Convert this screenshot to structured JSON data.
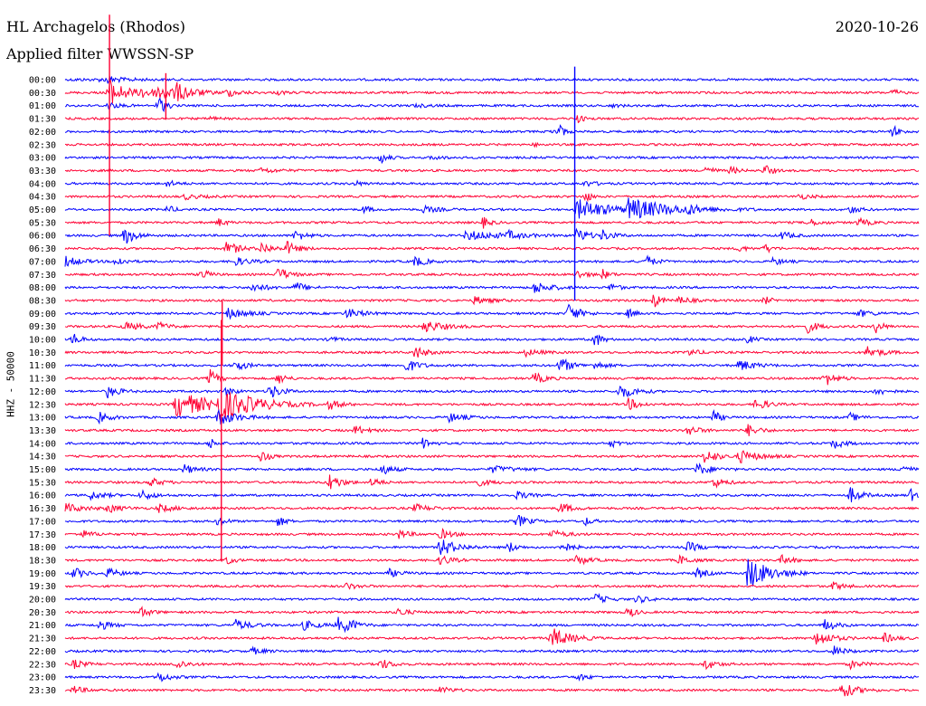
{
  "header": {
    "station": "HL Archagelos (Rhodos)",
    "date": "2020-10-26",
    "filter": "Applied filter  WWSSN-SP"
  },
  "channel_label": "HHZ - 50000",
  "chart_data": {
    "type": "line",
    "title": "HL Archagelos (Rhodos)",
    "subtitle": "Applied filter  WWSSN-SP",
    "date": "2020-10-26",
    "ylabel": "HHZ - 50000",
    "xlabel": "",
    "grid": false,
    "series_colors": [
      "#0000ff",
      "#ff0033"
    ],
    "rows": [
      {
        "label": "00:00",
        "events": [
          [
            0.01,
            0.5,
            0.1
          ],
          [
            0.04,
            0.3,
            0.15
          ],
          [
            0.05,
            0.3,
            0.5
          ],
          [
            0.08,
            0.9,
            0.05
          ]
        ]
      },
      {
        "label": "00:30",
        "events": [
          [
            0.05,
            0.4,
            2.2
          ],
          [
            0.09,
            0.35,
            0.7
          ],
          [
            0.11,
            0.35,
            1.2
          ],
          [
            0.13,
            0.45,
            1.1
          ],
          [
            0.19,
            0.25,
            0.6
          ],
          [
            0.25,
            0.1,
            0.3
          ],
          [
            0.97,
            0.08,
            0.5
          ]
        ]
      },
      {
        "label": "01:00",
        "events": [
          [
            0.05,
            0.2,
            0.5
          ],
          [
            0.11,
            0.1,
            1.5
          ],
          [
            0.41,
            0.4,
            0.2
          ],
          [
            0.64,
            0.2,
            0.2
          ]
        ]
      },
      {
        "label": "01:30",
        "events": [
          [
            0.17,
            0.1,
            0.3
          ],
          [
            0.6,
            0.1,
            0.6
          ]
        ]
      },
      {
        "label": "02:00",
        "events": [
          [
            0.57,
            0.1,
            0.4
          ],
          [
            0.58,
            0.05,
            0.9
          ],
          [
            0.97,
            0.1,
            0.9
          ]
        ]
      },
      {
        "label": "02:30",
        "events": [
          [
            0.55,
            0.1,
            0.2
          ]
        ]
      },
      {
        "label": "03:00",
        "events": [
          [
            0.37,
            0.1,
            0.9
          ],
          [
            0.43,
            0.2,
            0.3
          ]
        ]
      },
      {
        "label": "03:30",
        "events": [
          [
            0.23,
            0.3,
            0.4
          ],
          [
            0.75,
            0.1,
            0.8
          ],
          [
            0.78,
            0.1,
            0.6
          ],
          [
            0.82,
            0.1,
            0.9
          ]
        ]
      },
      {
        "label": "04:00",
        "events": [
          [
            0.12,
            0.15,
            0.5
          ],
          [
            0.34,
            0.1,
            0.4
          ],
          [
            0.61,
            0.2,
            0.4
          ]
        ]
      },
      {
        "label": "04:30",
        "events": [
          [
            0.14,
            0.3,
            0.4
          ],
          [
            0.61,
            0.05,
            1.0
          ],
          [
            0.86,
            0.2,
            0.4
          ]
        ]
      },
      {
        "label": "05:00",
        "events": [
          [
            0.12,
            0.1,
            0.6
          ],
          [
            0.35,
            0.1,
            0.6
          ],
          [
            0.42,
            0.3,
            0.5
          ],
          [
            0.6,
            0.8,
            1.6
          ],
          [
            0.66,
            1.2,
            1.5
          ],
          [
            0.73,
            0.15,
            0.5
          ],
          [
            0.92,
            0.15,
            0.6
          ]
        ]
      },
      {
        "label": "05:30",
        "events": [
          [
            0.18,
            0.1,
            0.6
          ],
          [
            0.49,
            0.1,
            0.8
          ],
          [
            0.87,
            0.2,
            0.6
          ],
          [
            0.93,
            0.2,
            0.6
          ]
        ]
      },
      {
        "label": "06:00",
        "events": [
          [
            0.07,
            0.2,
            1.4
          ],
          [
            0.27,
            0.2,
            0.8
          ],
          [
            0.47,
            0.9,
            0.7
          ],
          [
            0.52,
            0.2,
            0.5
          ],
          [
            0.6,
            0.2,
            1.2
          ],
          [
            0.63,
            0.2,
            0.8
          ],
          [
            0.84,
            0.2,
            0.6
          ]
        ]
      },
      {
        "label": "06:30",
        "events": [
          [
            0.19,
            0.2,
            1.2
          ],
          [
            0.23,
            0.2,
            0.9
          ],
          [
            0.26,
            0.2,
            1.0
          ],
          [
            0.79,
            0.1,
            0.5
          ],
          [
            0.82,
            0.1,
            0.7
          ]
        ]
      },
      {
        "label": "07:00",
        "events": [
          [
            0.0,
            0.3,
            0.8
          ],
          [
            0.06,
            0.15,
            0.8
          ],
          [
            0.2,
            0.3,
            0.6
          ],
          [
            0.41,
            0.2,
            0.8
          ],
          [
            0.68,
            0.15,
            1.0
          ],
          [
            0.83,
            0.15,
            0.6
          ]
        ]
      },
      {
        "label": "07:30",
        "events": [
          [
            0.16,
            0.1,
            0.9
          ],
          [
            0.25,
            0.2,
            1.1
          ],
          [
            0.6,
            0.2,
            0.6
          ],
          [
            0.63,
            0.1,
            0.7
          ]
        ]
      },
      {
        "label": "08:00",
        "events": [
          [
            0.22,
            0.25,
            0.7
          ],
          [
            0.27,
            0.2,
            0.8
          ],
          [
            0.55,
            0.35,
            0.9
          ],
          [
            0.64,
            0.1,
            0.7
          ]
        ]
      },
      {
        "label": "08:30",
        "events": [
          [
            0.48,
            0.3,
            0.6
          ],
          [
            0.69,
            0.1,
            1.1
          ],
          [
            0.72,
            0.2,
            0.6
          ],
          [
            0.82,
            0.1,
            0.6
          ]
        ]
      },
      {
        "label": "09:00",
        "events": [
          [
            0.19,
            0.4,
            0.8
          ],
          [
            0.33,
            0.3,
            0.8
          ],
          [
            0.59,
            0.2,
            1.5
          ],
          [
            0.66,
            0.1,
            0.7
          ],
          [
            0.93,
            0.3,
            0.5
          ]
        ]
      },
      {
        "label": "09:30",
        "events": [
          [
            0.07,
            0.4,
            0.6
          ],
          [
            0.11,
            0.15,
            0.6
          ],
          [
            0.42,
            0.4,
            1.0
          ],
          [
            0.87,
            0.2,
            0.9
          ],
          [
            0.95,
            0.1,
            1.0
          ]
        ]
      },
      {
        "label": "10:00",
        "events": [
          [
            0.01,
            0.1,
            1.0
          ],
          [
            0.31,
            0.1,
            0.5
          ],
          [
            0.62,
            0.1,
            1.3
          ],
          [
            0.8,
            0.1,
            0.6
          ]
        ]
      },
      {
        "label": "10:30",
        "events": [
          [
            0.41,
            0.2,
            1.0
          ],
          [
            0.54,
            0.3,
            0.5
          ],
          [
            0.73,
            0.2,
            0.5
          ],
          [
            0.94,
            0.3,
            0.9
          ]
        ]
      },
      {
        "label": "11:00",
        "events": [
          [
            0.2,
            0.15,
            1.0
          ],
          [
            0.4,
            0.2,
            1.1
          ],
          [
            0.58,
            0.2,
            1.3
          ],
          [
            0.62,
            0.2,
            0.6
          ],
          [
            0.79,
            0.3,
            0.9
          ]
        ]
      },
      {
        "label": "11:30",
        "events": [
          [
            0.17,
            0.1,
            1.4
          ],
          [
            0.25,
            0.1,
            1.0
          ],
          [
            0.55,
            0.2,
            0.9
          ],
          [
            0.89,
            0.2,
            1.2
          ]
        ]
      },
      {
        "label": "12:00",
        "events": [
          [
            0.05,
            0.2,
            1.0
          ],
          [
            0.19,
            0.1,
            0.8
          ],
          [
            0.24,
            0.2,
            1.2
          ],
          [
            0.65,
            0.3,
            1.1
          ],
          [
            0.95,
            0.2,
            0.6
          ]
        ]
      },
      {
        "label": "12:30",
        "events": [
          [
            0.13,
            0.9,
            2.0
          ],
          [
            0.18,
            0.9,
            2.1
          ],
          [
            0.31,
            0.2,
            0.8
          ],
          [
            0.66,
            0.2,
            0.9
          ],
          [
            0.81,
            0.2,
            1.0
          ]
        ]
      },
      {
        "label": "13:00",
        "events": [
          [
            0.04,
            0.2,
            0.8
          ],
          [
            0.18,
            0.4,
            1.2
          ],
          [
            0.45,
            0.3,
            0.7
          ],
          [
            0.76,
            0.1,
            1.0
          ],
          [
            0.92,
            0.15,
            0.6
          ]
        ]
      },
      {
        "label": "13:30",
        "events": [
          [
            0.34,
            0.2,
            0.7
          ],
          [
            0.73,
            0.2,
            0.8
          ],
          [
            0.8,
            0.2,
            0.9
          ]
        ]
      },
      {
        "label": "14:00",
        "events": [
          [
            0.17,
            0.1,
            0.8
          ],
          [
            0.42,
            0.1,
            1.0
          ],
          [
            0.64,
            0.1,
            0.6
          ],
          [
            0.9,
            0.2,
            0.8
          ]
        ]
      },
      {
        "label": "14:30",
        "events": [
          [
            0.23,
            0.1,
            1.0
          ],
          [
            0.75,
            0.2,
            1.3
          ],
          [
            0.79,
            0.4,
            1.0
          ]
        ]
      },
      {
        "label": "15:00",
        "events": [
          [
            0.14,
            0.2,
            0.7
          ],
          [
            0.37,
            0.2,
            0.9
          ],
          [
            0.5,
            0.5,
            0.5
          ],
          [
            0.74,
            0.3,
            0.9
          ],
          [
            0.98,
            0.1,
            0.9
          ]
        ]
      },
      {
        "label": "15:30",
        "events": [
          [
            0.1,
            0.2,
            0.7
          ],
          [
            0.31,
            0.2,
            1.3
          ],
          [
            0.36,
            0.1,
            0.9
          ],
          [
            0.48,
            0.3,
            0.6
          ],
          [
            0.76,
            0.2,
            0.8
          ]
        ]
      },
      {
        "label": "16:00",
        "events": [
          [
            0.03,
            0.3,
            0.6
          ],
          [
            0.09,
            0.2,
            0.8
          ],
          [
            0.53,
            0.2,
            0.6
          ],
          [
            0.92,
            0.2,
            1.2
          ],
          [
            0.99,
            0.2,
            0.9
          ]
        ]
      },
      {
        "label": "16:30",
        "events": [
          [
            0.0,
            0.4,
            0.7
          ],
          [
            0.05,
            0.3,
            0.6
          ],
          [
            0.11,
            0.3,
            0.6
          ],
          [
            0.41,
            0.3,
            0.6
          ],
          [
            0.58,
            0.2,
            0.9
          ]
        ]
      },
      {
        "label": "17:00",
        "events": [
          [
            0.18,
            0.1,
            0.9
          ],
          [
            0.25,
            0.1,
            0.8
          ],
          [
            0.53,
            0.2,
            1.0
          ],
          [
            0.61,
            0.1,
            0.6
          ]
        ]
      },
      {
        "label": "17:30",
        "events": [
          [
            0.02,
            0.2,
            0.6
          ],
          [
            0.39,
            0.2,
            0.7
          ],
          [
            0.44,
            0.2,
            0.8
          ],
          [
            0.57,
            0.3,
            0.6
          ]
        ]
      },
      {
        "label": "18:00",
        "events": [
          [
            0.44,
            0.35,
            1.4
          ],
          [
            0.52,
            0.1,
            0.9
          ],
          [
            0.58,
            0.2,
            0.9
          ],
          [
            0.73,
            0.2,
            0.8
          ]
        ]
      },
      {
        "label": "18:30",
        "events": [
          [
            0.19,
            0.1,
            0.6
          ],
          [
            0.44,
            0.2,
            0.8
          ],
          [
            0.6,
            0.2,
            0.8
          ],
          [
            0.72,
            0.2,
            0.7
          ],
          [
            0.84,
            0.2,
            0.7
          ]
        ]
      },
      {
        "label": "19:00",
        "events": [
          [
            0.01,
            0.2,
            0.9
          ],
          [
            0.05,
            0.2,
            0.8
          ],
          [
            0.38,
            0.2,
            0.6
          ],
          [
            0.8,
            0.5,
            2.6
          ],
          [
            0.74,
            0.2,
            0.7
          ]
        ]
      },
      {
        "label": "19:30",
        "events": [
          [
            0.33,
            0.2,
            0.5
          ],
          [
            0.9,
            0.2,
            0.6
          ]
        ]
      },
      {
        "label": "20:00",
        "events": [
          [
            0.62,
            0.2,
            0.9
          ],
          [
            0.67,
            0.2,
            0.6
          ]
        ]
      },
      {
        "label": "20:30",
        "events": [
          [
            0.09,
            0.15,
            0.8
          ],
          [
            0.39,
            0.2,
            0.6
          ],
          [
            0.66,
            0.1,
            0.9
          ]
        ]
      },
      {
        "label": "21:00",
        "events": [
          [
            0.04,
            0.2,
            0.8
          ],
          [
            0.2,
            0.3,
            0.8
          ],
          [
            0.28,
            0.3,
            0.7
          ],
          [
            0.32,
            0.1,
            1.1
          ],
          [
            0.33,
            0.2,
            1.0
          ],
          [
            0.89,
            0.2,
            0.9
          ]
        ]
      },
      {
        "label": "21:30",
        "events": [
          [
            0.57,
            0.4,
            1.6
          ],
          [
            0.88,
            0.3,
            1.3
          ],
          [
            0.96,
            0.2,
            0.7
          ]
        ]
      },
      {
        "label": "22:00",
        "events": [
          [
            0.22,
            0.2,
            0.5
          ],
          [
            0.9,
            0.2,
            0.8
          ]
        ]
      },
      {
        "label": "22:30",
        "events": [
          [
            0.01,
            0.2,
            0.7
          ],
          [
            0.13,
            0.2,
            0.8
          ],
          [
            0.37,
            0.2,
            0.8
          ],
          [
            0.75,
            0.2,
            0.8
          ],
          [
            0.92,
            0.2,
            0.6
          ]
        ]
      },
      {
        "label": "23:00",
        "events": [
          [
            0.11,
            0.2,
            0.8
          ],
          [
            0.6,
            0.2,
            0.5
          ]
        ]
      },
      {
        "label": "23:30",
        "events": [
          [
            0.01,
            0.2,
            0.6
          ],
          [
            0.44,
            0.2,
            0.5
          ],
          [
            0.91,
            0.3,
            1.2
          ]
        ]
      }
    ],
    "spikes": [
      {
        "row": 1,
        "x": 0.052,
        "up": 6.0,
        "down": 11.0
      },
      {
        "row": 1,
        "x": 0.118,
        "up": 1.5,
        "down": 2.0
      },
      {
        "row": 12,
        "x": 0.597,
        "up": 13.0,
        "down": 5.0
      },
      {
        "row": 25,
        "x": 0.183,
        "up": 6.5,
        "down": 12.0
      },
      {
        "row": 19,
        "x": 0.184,
        "up": 2.0,
        "down": 3.0
      }
    ]
  }
}
